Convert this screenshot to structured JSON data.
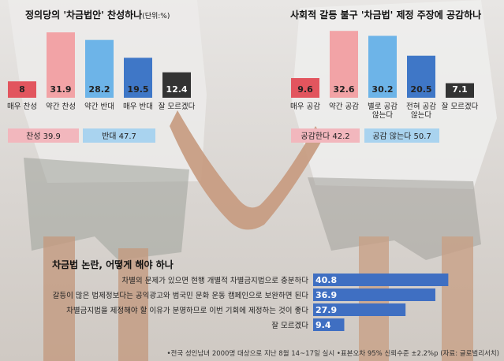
{
  "chart_data": [
    {
      "type": "bar",
      "title": "정의당의 '차금법안' 찬성하나",
      "unit": "(단위:%)",
      "categories": [
        "매우 찬성",
        "약간 찬성",
        "약간 반대",
        "매우 반대",
        "잘 모르겠다"
      ],
      "values": [
        8,
        31.9,
        28.2,
        19.5,
        12.4
      ],
      "value_labels": [
        "8",
        "31.9",
        "28.2",
        "19.5",
        "12.4"
      ],
      "colors": [
        "#e2555e",
        "#f2a3a6",
        "#6db4e8",
        "#3f77c7",
        "#333333"
      ],
      "groups": [
        {
          "label": "찬성 39.9",
          "color": "#f2b7bd"
        },
        {
          "label": "반대 47.7",
          "color": "#a9d3ef"
        }
      ]
    },
    {
      "type": "bar",
      "title": "사회적 갈등 불구 '차금법' 제정 주장에 공감하나",
      "categories": [
        "매우 공감",
        "약간 공감",
        "별로 공감 않는다",
        "전혀 공감 않는다",
        "잘 모르겠다"
      ],
      "category_lines": [
        [
          "매우 공감"
        ],
        [
          "약간 공감"
        ],
        [
          "별로 공감",
          "않는다"
        ],
        [
          "전혀 공감",
          "않는다"
        ],
        [
          "잘 모르겠다"
        ]
      ],
      "values": [
        9.6,
        32.6,
        30.2,
        20.5,
        7.1
      ],
      "value_labels": [
        "9.6",
        "32.6",
        "30.2",
        "20.5",
        "7.1"
      ],
      "colors": [
        "#e2555e",
        "#f2a3a6",
        "#6db4e8",
        "#3f77c7",
        "#333333"
      ],
      "groups": [
        {
          "label": "공감한다 42.2",
          "color": "#f2b7bd"
        },
        {
          "label": "공감 않는다 50.7",
          "color": "#a9d3ef"
        }
      ]
    },
    {
      "type": "bar",
      "orientation": "horizontal",
      "title": "차금법 논란, 어떻게 해야 하나",
      "categories": [
        "차별의 문제가 있으면 현행 개별적 차별금지법으로 충분하다",
        "갈등이 많은 법제정보다는 공익광고와 범국민 문화 운동 캠페인으로 보완하면 된다",
        "차별금지법을 제정해야 할 이유가 분명하므로 이번 기회에 제정하는 것이 좋다",
        "잘 모르겠다"
      ],
      "values": [
        40.8,
        36.9,
        27.9,
        9.4
      ],
      "value_labels": [
        "40.8",
        "36.9",
        "27.9",
        "9.4"
      ],
      "color": "#3f6fc2"
    }
  ],
  "footnote": "•전국 성인남녀 2000명 대상으로 지난 8월 14~17일 실시  •표본오차 95% 신뢰수준 ±2.2%p (자료: 글로벌리서치)"
}
